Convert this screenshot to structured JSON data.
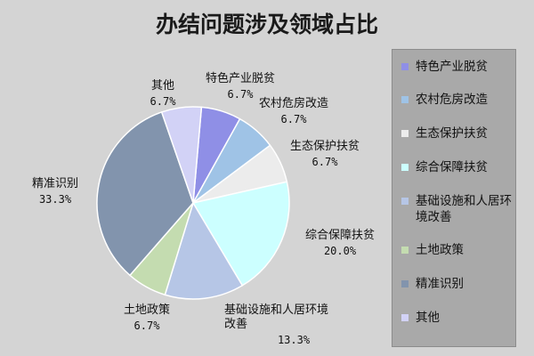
{
  "title": "办结问题涉及领域占比",
  "chart_data": {
    "type": "pie",
    "title": "办结问题涉及领域占比",
    "legend_position": "right",
    "slices": [
      {
        "name": "特色产业脱贫",
        "value": 6.7,
        "label": "6.7%",
        "color": "#8f8fe6"
      },
      {
        "name": "农村危房改造",
        "value": 6.7,
        "label": "6.7%",
        "color": "#9fc3e6"
      },
      {
        "name": "生态保护扶贫",
        "value": 6.7,
        "label": "6.7%",
        "color": "#ececec"
      },
      {
        "name": "综合保障扶贫",
        "value": 20.0,
        "label": "20.0%",
        "color": "#ccffff"
      },
      {
        "name": "基础设施和人居环境改善",
        "value": 13.3,
        "label": "13.3%",
        "color": "#b6c6e6"
      },
      {
        "name": "土地政策",
        "value": 6.7,
        "label": "6.7%",
        "color": "#c4dcb0"
      },
      {
        "name": "精准识别",
        "value": 33.3,
        "label": "33.3%",
        "color": "#8294ad"
      },
      {
        "name": "其他",
        "value": 6.7,
        "label": "6.7%",
        "color": "#d2d2f6"
      }
    ]
  }
}
